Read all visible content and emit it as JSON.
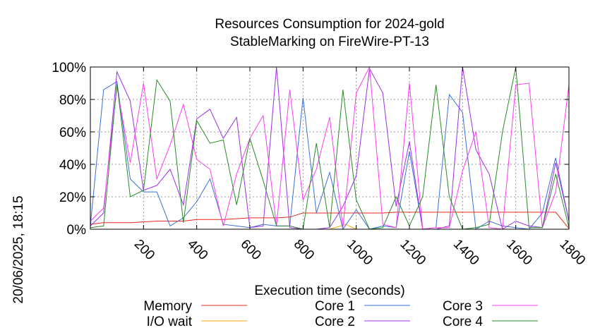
{
  "chart_data": {
    "type": "line",
    "title": [
      "Resources Consumption for 2024-gold",
      "StableMarking on FireWire-PT-13"
    ],
    "xlabel": "Execution time (seconds)",
    "ylabel": "",
    "xlim": [
      0,
      1800
    ],
    "ylim": [
      0,
      100
    ],
    "x_ticks": [
      200,
      400,
      600,
      800,
      1000,
      1200,
      1400,
      1600,
      1800
    ],
    "y_ticks": [
      "0%",
      "20%",
      "40%",
      "60%",
      "80%",
      "100%"
    ],
    "y_tick_values": [
      0,
      20,
      40,
      60,
      80,
      100
    ],
    "grid": true,
    "legend_position": "bottom",
    "timestamp": "20/06/2025, 18:15",
    "series": [
      {
        "name": "Memory",
        "color": "#e8291c",
        "x": [
          0,
          25,
          50,
          100,
          150,
          200,
          250,
          300,
          350,
          400,
          450,
          500,
          550,
          600,
          650,
          700,
          750,
          800,
          850,
          900,
          950,
          1000,
          1050,
          1100,
          1150,
          1200,
          1250,
          1300,
          1350,
          1400,
          1450,
          1500,
          1550,
          1600,
          1650,
          1700,
          1750,
          1800
        ],
        "y": [
          3,
          3.5,
          4,
          4,
          4,
          4.5,
          5,
          5,
          5,
          6,
          6,
          6,
          6.5,
          7,
          7,
          7,
          7.5,
          10,
          10,
          10,
          10,
          10,
          10,
          10,
          10.5,
          10.5,
          10.5,
          10.5,
          10.5,
          10.5,
          10.5,
          10.5,
          10.5,
          10.5,
          10.5,
          10.5,
          10.5,
          0.5
        ]
      },
      {
        "name": "I/O wait",
        "color": "#ffa500",
        "x": [
          0,
          100,
          200,
          300,
          400,
          500,
          600,
          700,
          800,
          900,
          960,
          1000,
          1100,
          1200,
          1300,
          1400,
          1500,
          1600,
          1700,
          1800
        ],
        "y": [
          0,
          0,
          0,
          0,
          0,
          0,
          0,
          0,
          0,
          0,
          3,
          0,
          0,
          0,
          0,
          0,
          0,
          0,
          0,
          0
        ]
      },
      {
        "name": "Core 1",
        "color": "#3b6fd4",
        "x": [
          0,
          50,
          100,
          150,
          200,
          250,
          300,
          350,
          400,
          450,
          500,
          550,
          600,
          650,
          700,
          750,
          800,
          850,
          900,
          950,
          1000,
          1050,
          1100,
          1150,
          1200,
          1250,
          1300,
          1350,
          1400,
          1450,
          1500,
          1550,
          1600,
          1650,
          1700,
          1750,
          1800
        ],
        "y": [
          2,
          86,
          91,
          31,
          23,
          23,
          2,
          7,
          17,
          31,
          3,
          2,
          1,
          3,
          2,
          2,
          81,
          10,
          35,
          0,
          12,
          0,
          2,
          1,
          48,
          0,
          1,
          83,
          72,
          0,
          5,
          2,
          1,
          0,
          10,
          44,
          5
        ]
      },
      {
        "name": "Core 2",
        "color": "#9b30e6",
        "x": [
          0,
          50,
          100,
          150,
          200,
          250,
          300,
          350,
          400,
          450,
          500,
          550,
          600,
          650,
          700,
          750,
          800,
          850,
          900,
          950,
          1000,
          1050,
          1100,
          1150,
          1200,
          1250,
          1300,
          1350,
          1400,
          1450,
          1500,
          1550,
          1600,
          1650,
          1700,
          1750,
          1800
        ],
        "y": [
          2,
          10,
          97,
          79,
          24,
          27,
          37,
          15,
          68,
          74,
          56,
          69,
          1,
          2,
          100,
          1,
          0,
          0,
          1,
          14,
          33,
          99,
          84,
          14,
          54,
          0,
          0,
          2,
          100,
          49,
          34,
          0,
          5,
          2,
          1,
          41,
          5
        ]
      },
      {
        "name": "Core 3",
        "color": "#ff3cf0",
        "x": [
          0,
          50,
          100,
          150,
          200,
          250,
          300,
          350,
          400,
          450,
          500,
          550,
          600,
          650,
          700,
          750,
          800,
          850,
          900,
          950,
          1000,
          1050,
          1100,
          1150,
          1200,
          1250,
          1300,
          1350,
          1400,
          1450,
          1500,
          1550,
          1600,
          1650,
          1700,
          1750,
          1800
        ],
        "y": [
          5,
          13,
          88,
          41,
          90,
          31,
          52,
          77,
          43,
          37,
          2,
          34,
          56,
          70,
          2,
          86,
          18,
          37,
          69,
          1,
          84,
          100,
          3,
          1,
          90,
          0,
          1,
          1,
          36,
          60,
          1,
          0,
          89,
          90,
          1,
          23,
          89
        ]
      },
      {
        "name": "Core 4",
        "color": "#2a8a2a",
        "x": [
          0,
          50,
          100,
          150,
          200,
          250,
          300,
          350,
          400,
          450,
          500,
          550,
          600,
          650,
          700,
          750,
          800,
          850,
          900,
          950,
          1000,
          1050,
          1100,
          1150,
          1200,
          1250,
          1300,
          1350,
          1400,
          1450,
          1500,
          1550,
          1600,
          1650,
          1700,
          1750,
          1800
        ],
        "y": [
          1,
          2,
          90,
          20,
          24,
          92,
          79,
          4,
          67,
          53,
          55,
          15,
          56,
          30,
          2,
          2,
          0,
          53,
          1,
          86,
          18,
          0,
          1,
          20,
          2,
          20,
          89,
          20,
          0,
          1,
          3,
          60,
          100,
          1,
          1,
          34,
          1
        ]
      }
    ]
  }
}
